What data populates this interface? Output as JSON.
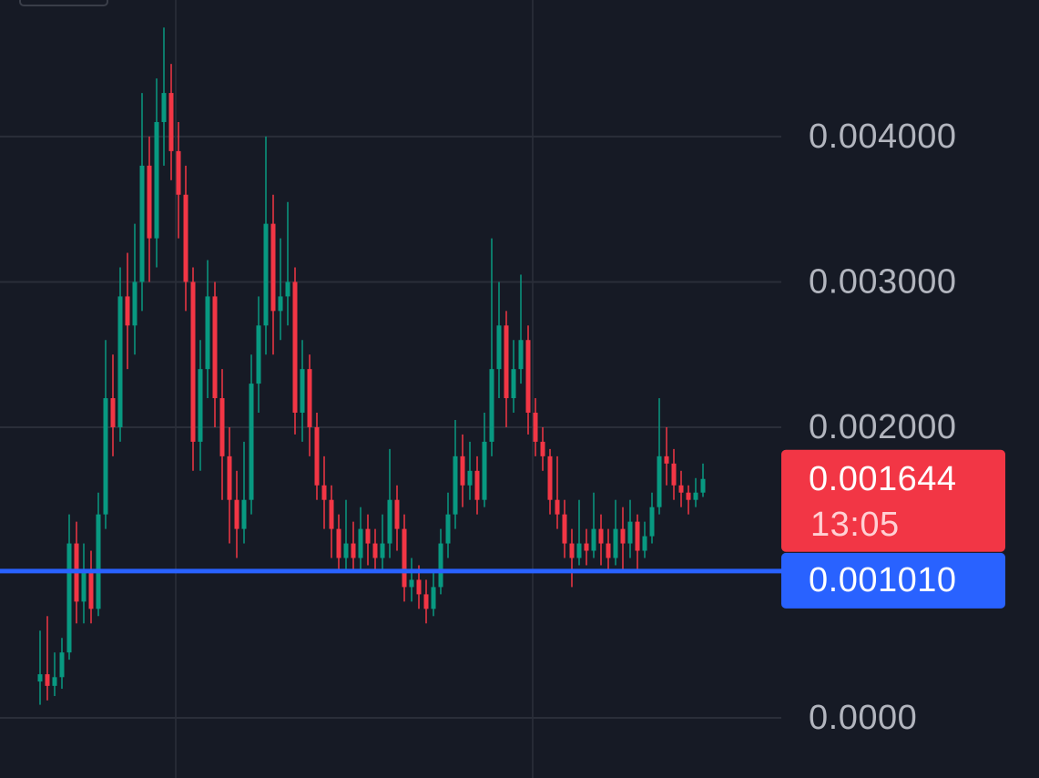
{
  "chart_data": {
    "type": "candlestick",
    "up_color": "#089981",
    "down_color": "#f23645",
    "ylim": [
      -0.000414,
      0.00494
    ],
    "yticks": [
      {
        "value": 0,
        "label": "0.0000"
      },
      {
        "value": 0.002,
        "label": "0.002000"
      },
      {
        "value": 0.003,
        "label": "0.003000"
      },
      {
        "value": 0.004,
        "label": "0.004000"
      }
    ],
    "grid": true,
    "open": [
      0.00025,
      0.0003,
      0.00022,
      0.00028,
      0.00045,
      0.0012,
      0.0008,
      0.001,
      0.00075,
      0.0014,
      0.0022,
      0.002,
      0.0029,
      0.0027,
      0.003,
      0.0038,
      0.0033,
      0.0041,
      0.0043,
      0.0039,
      0.0036,
      0.003,
      0.0019,
      0.0024,
      0.0029,
      0.0022,
      0.0018,
      0.0015,
      0.0013,
      0.0015,
      0.0023,
      0.0027,
      0.0034,
      0.0028,
      0.0029,
      0.003,
      0.0021,
      0.0024,
      0.002,
      0.0016,
      0.0015,
      0.0013,
      0.0011,
      0.0012,
      0.0011,
      0.0013,
      0.0012,
      0.0011,
      0.0012,
      0.0015,
      0.0013,
      0.0009,
      0.00095,
      0.00085,
      0.00075,
      0.0009,
      0.0012,
      0.0014,
      0.0018,
      0.0016,
      0.0017,
      0.0015,
      0.0019,
      0.0024,
      0.0027,
      0.0022,
      0.0024,
      0.0026,
      0.0021,
      0.0019,
      0.0018,
      0.0015,
      0.0014,
      0.0012,
      0.0011,
      0.0012,
      0.00115,
      0.0013,
      0.0012,
      0.0011,
      0.0013,
      0.0012,
      0.00135,
      0.00115,
      0.00125,
      0.00145,
      0.0018,
      0.00175,
      0.0016,
      0.00155,
      0.0015,
      0.00155
    ],
    "high": [
      0.0006,
      0.0007,
      0.00045,
      0.00055,
      0.0014,
      0.00135,
      0.0012,
      0.00115,
      0.00155,
      0.0026,
      0.0025,
      0.0031,
      0.0032,
      0.0034,
      0.0043,
      0.004,
      0.0044,
      0.00475,
      0.0045,
      0.0041,
      0.0038,
      0.0031,
      0.0026,
      0.00315,
      0.003,
      0.0024,
      0.002,
      0.0017,
      0.0019,
      0.0025,
      0.0029,
      0.004,
      0.0036,
      0.0033,
      0.00355,
      0.0031,
      0.0026,
      0.0025,
      0.0021,
      0.0018,
      0.0016,
      0.0014,
      0.0015,
      0.00135,
      0.00145,
      0.0014,
      0.0013,
      0.0014,
      0.00185,
      0.0016,
      0.0014,
      0.0011,
      0.00105,
      0.00095,
      0.001,
      0.0013,
      0.00155,
      0.00205,
      0.00195,
      0.0019,
      0.0018,
      0.0021,
      0.0033,
      0.003,
      0.0028,
      0.0026,
      0.00305,
      0.0027,
      0.0022,
      0.002,
      0.00185,
      0.0018,
      0.0015,
      0.0013,
      0.0015,
      0.0013,
      0.00155,
      0.0014,
      0.0013,
      0.0015,
      0.00145,
      0.0015,
      0.0014,
      0.00135,
      0.00155,
      0.0022,
      0.002,
      0.00185,
      0.0017,
      0.0016,
      0.00165,
      0.00175
    ],
    "low": [
      9e-05,
      0.00012,
      0.00015,
      0.0002,
      0.0004,
      0.00065,
      0.00065,
      0.00065,
      0.0007,
      0.0013,
      0.0018,
      0.0019,
      0.0024,
      0.0025,
      0.0028,
      0.003,
      0.0031,
      0.0038,
      0.0037,
      0.0033,
      0.0028,
      0.0017,
      0.0017,
      0.0022,
      0.002,
      0.0015,
      0.0012,
      0.0011,
      0.0012,
      0.0014,
      0.0021,
      0.0025,
      0.0025,
      0.0026,
      0.0027,
      0.00195,
      0.0019,
      0.0018,
      0.0015,
      0.0013,
      0.0011,
      0.001,
      0.001,
      0.001,
      0.001,
      0.00105,
      0.001,
      0.001,
      0.0011,
      0.00115,
      0.0008,
      0.0008,
      0.00075,
      0.00065,
      0.0007,
      0.00085,
      0.0011,
      0.0013,
      0.00145,
      0.0015,
      0.0014,
      0.00145,
      0.0018,
      0.0022,
      0.002,
      0.0021,
      0.0023,
      0.00195,
      0.0018,
      0.0017,
      0.0014,
      0.0013,
      0.0011,
      0.0009,
      0.00105,
      0.00105,
      0.0011,
      0.00105,
      0.001,
      0.00105,
      0.001,
      0.0011,
      0.001,
      0.0011,
      0.0012,
      0.0014,
      0.0016,
      0.0015,
      0.00145,
      0.0014,
      0.00145,
      0.00152
    ],
    "close": [
      0.0003,
      0.00022,
      0.00028,
      0.00045,
      0.0012,
      0.0008,
      0.001,
      0.00075,
      0.0014,
      0.0022,
      0.002,
      0.0029,
      0.0027,
      0.003,
      0.0038,
      0.0033,
      0.0041,
      0.0043,
      0.0039,
      0.0036,
      0.003,
      0.0019,
      0.0024,
      0.0029,
      0.0022,
      0.0018,
      0.0015,
      0.0013,
      0.0015,
      0.0023,
      0.0027,
      0.0034,
      0.0028,
      0.0029,
      0.003,
      0.0021,
      0.0024,
      0.002,
      0.0016,
      0.0015,
      0.0013,
      0.0011,
      0.0012,
      0.0011,
      0.0013,
      0.0012,
      0.0011,
      0.0012,
      0.0015,
      0.0013,
      0.0009,
      0.00095,
      0.00085,
      0.00075,
      0.0009,
      0.0012,
      0.0014,
      0.0018,
      0.0016,
      0.0017,
      0.0015,
      0.0019,
      0.0024,
      0.0027,
      0.0022,
      0.0024,
      0.0026,
      0.0021,
      0.0019,
      0.0018,
      0.0015,
      0.0014,
      0.0012,
      0.0011,
      0.0012,
      0.00115,
      0.0013,
      0.0012,
      0.0011,
      0.0013,
      0.0012,
      0.00135,
      0.00115,
      0.00125,
      0.00145,
      0.0018,
      0.00175,
      0.0016,
      0.00155,
      0.0015,
      0.00155,
      0.001644
    ],
    "last_price": {
      "value": 0.001644,
      "countdown": "13:05",
      "color": "#f23645"
    },
    "price_line": {
      "value": 0.00101,
      "label": "0.001010",
      "color": "#2962ff"
    }
  }
}
